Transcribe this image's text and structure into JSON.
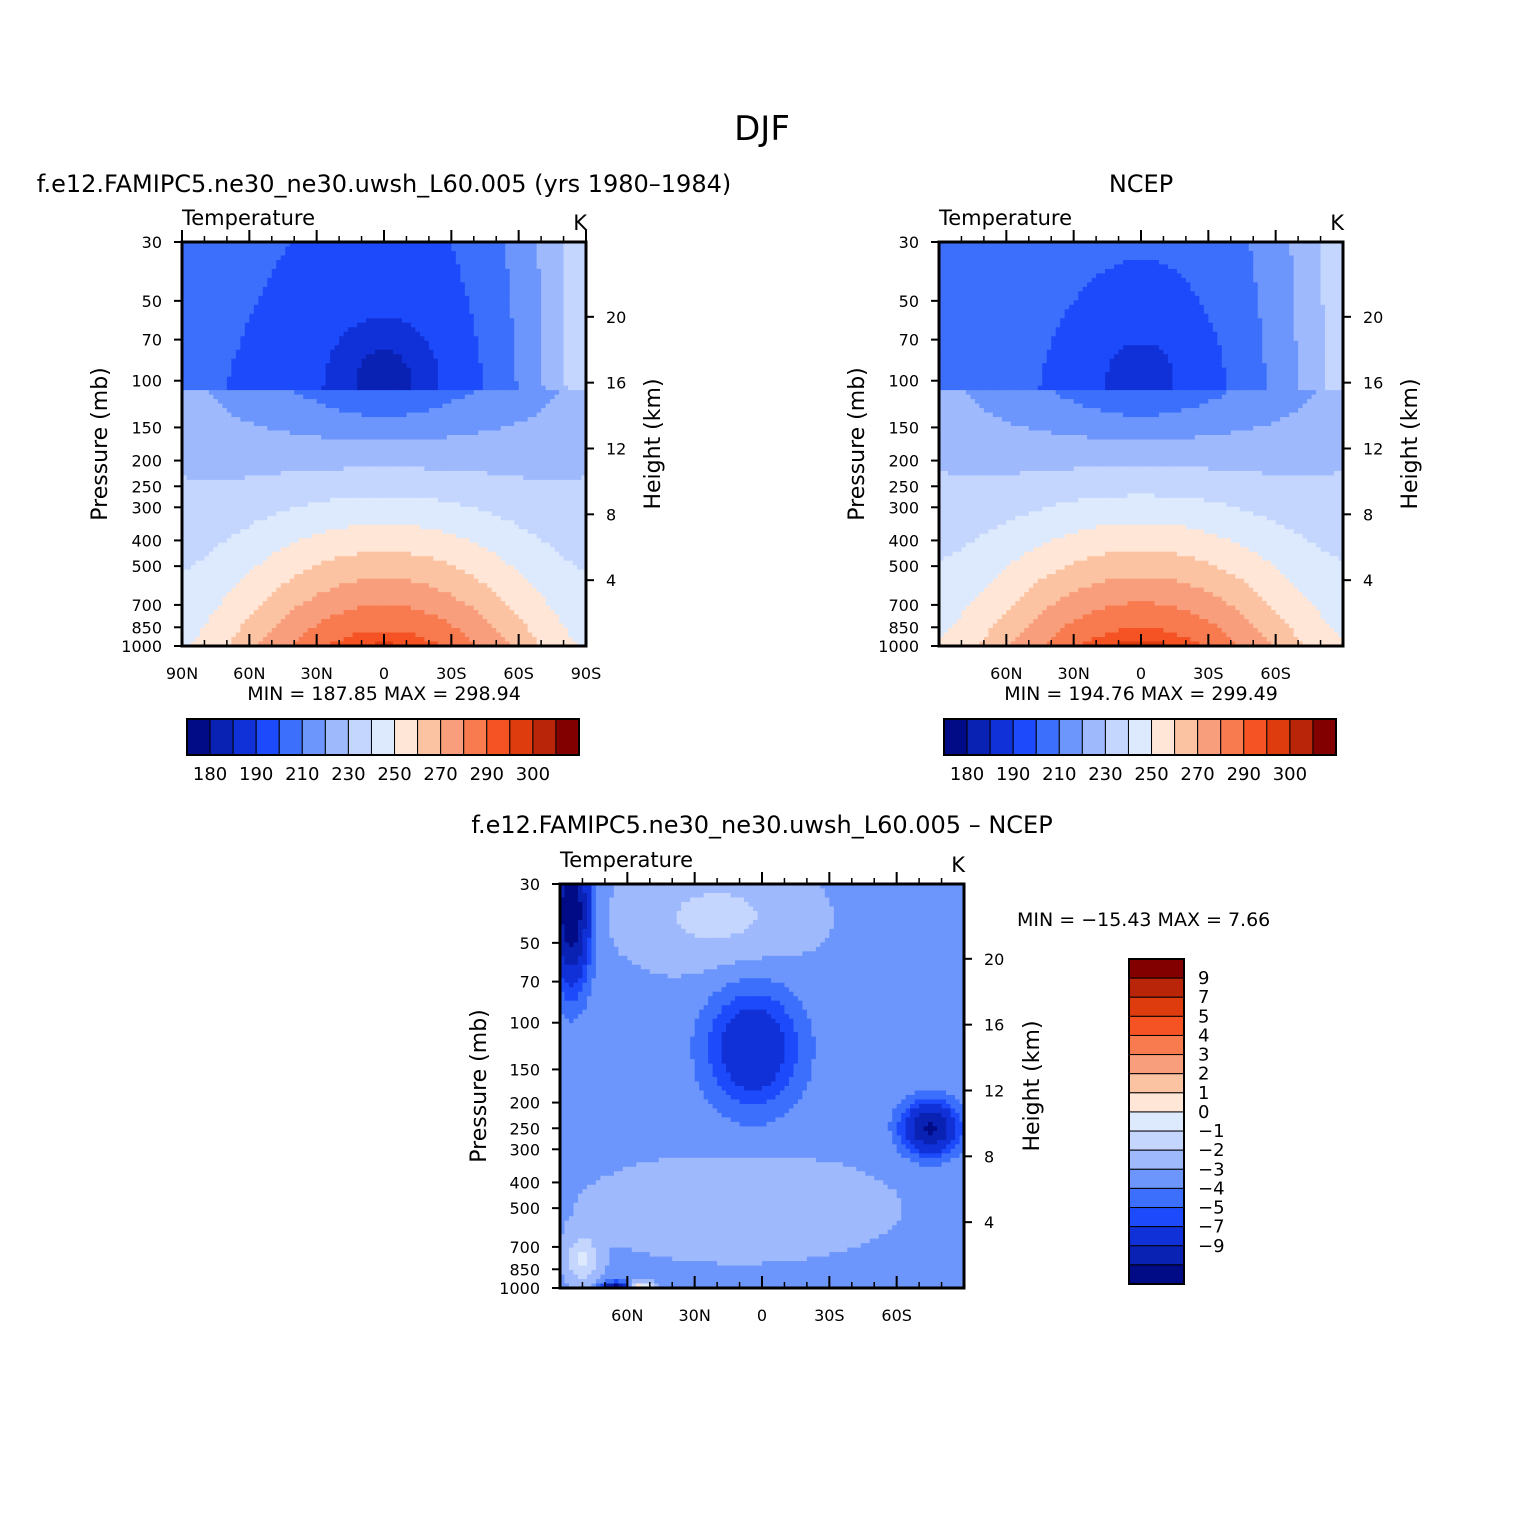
{
  "figure_title": "DJF",
  "colors": {
    "abs_palette": [
      "#000b85",
      "#0a22b4",
      "#1131d8",
      "#1d4afa",
      "#3c6ffc",
      "#6d96fd",
      "#9fb9fd",
      "#c5d6fe",
      "#ddeafe",
      "#ffe6d6",
      "#fcc3a3",
      "#f99e7c",
      "#f87a4f",
      "#f55324",
      "#de3c0f",
      "#b82508",
      "#830000"
    ],
    "diff_palette": [
      "#000b85",
      "#0a22b4",
      "#1131d8",
      "#1d4afa",
      "#3c6ffc",
      "#6d96fd",
      "#9fb9fd",
      "#c5d6fe",
      "#ddeafe",
      "#ffe6d6",
      "#fcc3a3",
      "#f99e7c",
      "#f87a4f",
      "#f55324",
      "#de3c0f",
      "#b82508",
      "#830000"
    ]
  },
  "panels": [
    {
      "id": "model",
      "header": "f.e12.FAMIPC5.ne30_ne30.uwsh_L60.005 (yrs 1980–1984)",
      "left_label": "Temperature",
      "right_label": "K",
      "stats": "MIN =  187.85   MAX =  298.94",
      "ylabel": "Pressure (mb)",
      "y2label": "Height (km)"
    },
    {
      "id": "obs",
      "header": "NCEP",
      "left_label": "Temperature",
      "right_label": "K",
      "stats": "MIN =  194.76   MAX =  299.49",
      "ylabel": "Pressure (mb)",
      "y2label": "Height (km)"
    },
    {
      "id": "diff",
      "header": "f.e12.FAMIPC5.ne30_ne30.uwsh_L60.005 – NCEP",
      "left_label": "Temperature",
      "right_label": "K",
      "stats": "MIN = −15.43   MAX =     7.66",
      "ylabel": "Pressure (mb)",
      "y2label": "Height (km)"
    }
  ],
  "chart_data": [
    {
      "type": "heatmap",
      "title": "f.e12.FAMIPC5.ne30_ne30.uwsh_L60.005 (yrs 1980–1984)",
      "variable": "Temperature",
      "units": "K",
      "x_ticks": [
        "90N",
        "60N",
        "30N",
        "0",
        "30S",
        "60S",
        "90S"
      ],
      "x_tick_lat": [
        90,
        60,
        30,
        0,
        -30,
        -60,
        -90
      ],
      "x_range": [
        90,
        -90
      ],
      "y_ticks_pressure": [
        30,
        50,
        70,
        100,
        150,
        200,
        250,
        300,
        400,
        500,
        700,
        850,
        1000
      ],
      "y_range_mb": [
        1000,
        30
      ],
      "y2_ticks_km": [
        4,
        8,
        12,
        16,
        20
      ],
      "levels": [
        180,
        185,
        190,
        200,
        210,
        220,
        230,
        240,
        250,
        260,
        270,
        280,
        290,
        295,
        300,
        305
      ],
      "colorbar_labels": [
        "180",
        "190",
        "210",
        "230",
        "250",
        "270",
        "290",
        "300"
      ],
      "min": 187.85,
      "max": 298.94,
      "surface_T": 296,
      "surface_polar_T": 249,
      "tropopause_T": 191,
      "strat_north_T": 201,
      "strat_south_T": 240
    },
    {
      "type": "heatmap",
      "title": "NCEP",
      "variable": "Temperature",
      "units": "K",
      "x_ticks": [
        "60N",
        "30N",
        "0",
        "30S",
        "60S"
      ],
      "x_tick_lat": [
        60,
        30,
        0,
        -30,
        -60
      ],
      "x_range": [
        90,
        -90
      ],
      "y_ticks_pressure": [
        30,
        50,
        70,
        100,
        150,
        200,
        250,
        300,
        400,
        500,
        700,
        850,
        1000
      ],
      "y_range_mb": [
        1000,
        30
      ],
      "y2_ticks_km": [
        4,
        8,
        12,
        16,
        20
      ],
      "levels": [
        180,
        185,
        190,
        200,
        210,
        220,
        230,
        240,
        250,
        260,
        270,
        280,
        290,
        295,
        300,
        305
      ],
      "colorbar_labels": [
        "180",
        "190",
        "210",
        "230",
        "250",
        "270",
        "290",
        "300"
      ],
      "min": 194.76,
      "max": 299.49,
      "surface_T": 297,
      "surface_polar_T": 251,
      "tropopause_T": 195,
      "strat_north_T": 210,
      "strat_south_T": 238
    },
    {
      "type": "heatmap",
      "title": "f.e12.FAMIPC5.ne30_ne30.uwsh_L60.005 – NCEP",
      "variable": "Temperature",
      "units": "K",
      "x_ticks": [
        "60N",
        "30N",
        "0",
        "30S",
        "60S"
      ],
      "x_tick_lat": [
        60,
        30,
        0,
        -30,
        -60
      ],
      "x_range": [
        90,
        -90
      ],
      "y_ticks_pressure": [
        30,
        50,
        70,
        100,
        150,
        200,
        250,
        300,
        400,
        500,
        700,
        850,
        1000
      ],
      "y_range_mb": [
        1000,
        30
      ],
      "y2_ticks_km": [
        4,
        8,
        12,
        16,
        20
      ],
      "levels": [
        -9,
        -7,
        -5,
        -4,
        -3,
        -2,
        -1,
        0,
        1,
        2,
        3,
        4,
        5,
        7,
        9
      ],
      "colorbar_labels": [
        "9",
        "7",
        "5",
        "4",
        "3",
        "2",
        "1",
        "0",
        "−1",
        "−2",
        "−3",
        "−4",
        "−5",
        "−7",
        "−9"
      ],
      "min": -15.43,
      "max": 7.66
    }
  ]
}
